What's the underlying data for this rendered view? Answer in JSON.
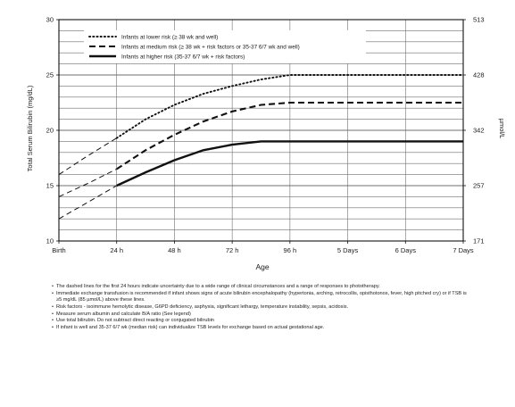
{
  "chart_data": {
    "type": "line",
    "title": "",
    "xlabel": "Age",
    "ylabel": "Total Serum Bilirubin (mg/dL)",
    "ylabel_right": "µmol/L",
    "categories": [
      "Birth",
      "24 h",
      "48 h",
      "72 h",
      "96 h",
      "5 Days",
      "6 Days",
      "7 Days"
    ],
    "ylim": [
      10,
      30
    ],
    "yticks": [
      10,
      15,
      20,
      25,
      30
    ],
    "yticks_right": [
      {
        "value": 10,
        "label": "171"
      },
      {
        "value": 15,
        "label": "257"
      },
      {
        "value": 20,
        "label": "342"
      },
      {
        "value": 25,
        "label": "428"
      },
      {
        "value": 30,
        "label": "513"
      }
    ],
    "grid": "horizontal every 1 mg/dL, vertical at each age",
    "legend_position": "top-left",
    "dashed_uncertainty_until_category": 1,
    "series": [
      {
        "name": "Infants at lower risk (≥ 38 wk and well)",
        "style": "dotted",
        "color": "#111111",
        "x": [
          0,
          0.5,
          1,
          1.5,
          2,
          2.5,
          3,
          3.5,
          4,
          5,
          6,
          7
        ],
        "y": [
          16,
          17.7,
          19.3,
          21,
          22.3,
          23.3,
          24,
          24.6,
          25,
          25,
          25,
          25
        ]
      },
      {
        "name": "Infants at medium risk (≥ 38 wk + risk factors or 35-37 6/7 wk and well)",
        "style": "dashed",
        "color": "#111111",
        "x": [
          0,
          0.5,
          1,
          1.5,
          2,
          2.5,
          3,
          3.5,
          4,
          5,
          6,
          7
        ],
        "y": [
          14,
          15.2,
          16.5,
          18.2,
          19.6,
          20.8,
          21.7,
          22.3,
          22.5,
          22.5,
          22.5,
          22.5
        ]
      },
      {
        "name": "Infants at higher risk (35-37 6/7 wk + risk factors)",
        "style": "solid",
        "color": "#111111",
        "x": [
          0,
          0.5,
          1,
          1.5,
          2,
          2.5,
          3,
          3.5,
          4,
          5,
          6,
          7
        ],
        "y": [
          12,
          13.5,
          15,
          16.2,
          17.3,
          18.2,
          18.7,
          19,
          19,
          19,
          19,
          19
        ]
      }
    ]
  },
  "notes": [
    "The dashed lines for the first 24 hours indicate uncertainty due to a wide range of clinical circumstances and a range of responses to phototherapy.",
    "Immediate exchange transfusion is recommended if infant shows signs of acute bilirubin encephalopathy (hypertonia, arching, retrocollis, opisthotonos, fever, high pitched cry) or if TSB is ≥5 mg/dL (85 µmol/L) above these lines.",
    "Risk factors - isoimmune hemolytic disease, G6PD deficiency, asphyxia, significant lethargy, temperature instability, sepsis, acidosis.",
    "Measure serum albumin and calculate B/A ratio (See legend)",
    "Use total bilirubin. Do not subtract direct reacting or conjugated bilirubin",
    "If infant is well and 35-37 6/7 wk (median risk) can individualize TSB levels for exchange based on actual gestational age."
  ]
}
